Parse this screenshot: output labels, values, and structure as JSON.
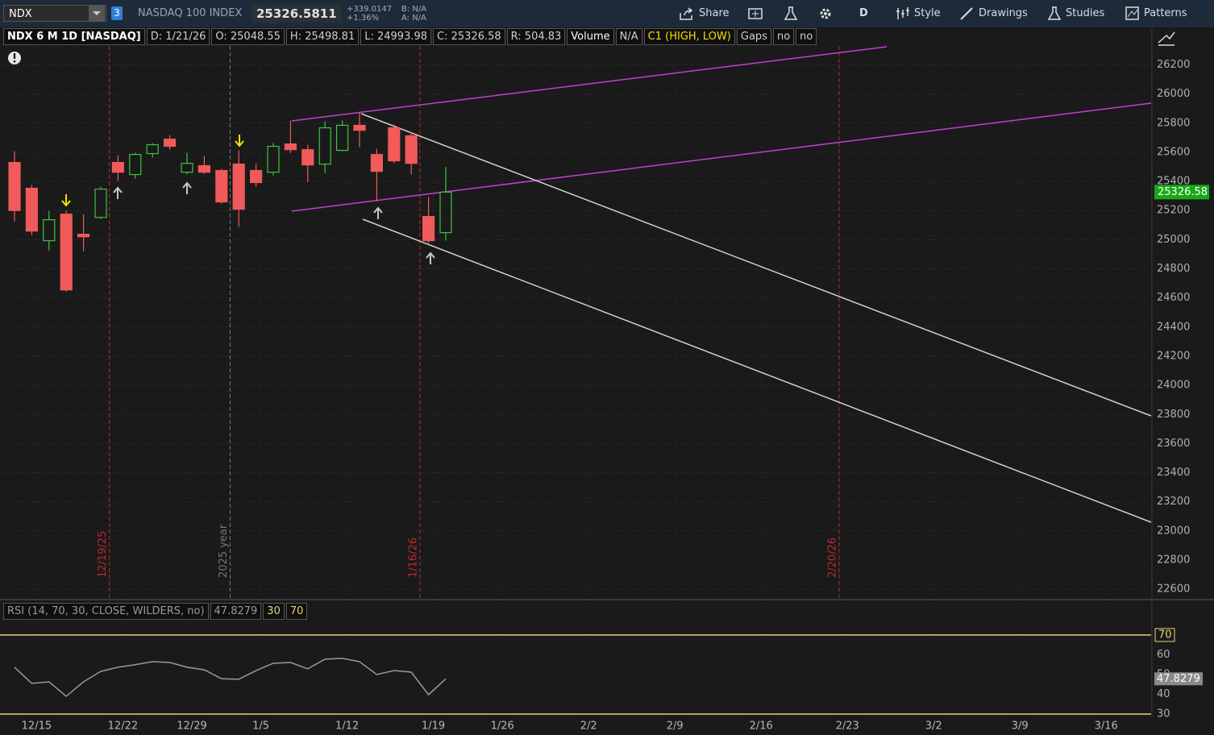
{
  "toolbar": {
    "symbol": "NDX",
    "badge": "3",
    "description": "NASDAQ 100 INDEX",
    "last": "25326.5811",
    "change": "+339.0147",
    "change_pct": "+1.36%",
    "bid": "B: N/A",
    "ask": "A: N/A",
    "buttons": [
      "Share",
      "D",
      "Style",
      "Drawings",
      "Studies",
      "Patterns"
    ]
  },
  "info_bar": [
    "NDX 6 M 1D [NASDAQ]",
    "D: 1/21/26",
    "O: 25048.55",
    "H: 25498.81",
    "L: 24993.98",
    "C: 25326.58",
    "R: 504.83",
    "Volume",
    "N/A",
    "C1 (HIGH, LOW)",
    "Gaps",
    "no",
    "no"
  ],
  "chart_data": [
    {
      "type": "candlestick",
      "categories": [
        null,
        "12/15",
        null,
        null,
        null,
        null,
        "12/22",
        null,
        null,
        null,
        "12/29",
        null,
        null,
        null,
        "1/5",
        null,
        null,
        null,
        null,
        "1/12",
        null,
        null,
        null,
        null,
        "1/19",
        null,
        null,
        null,
        "1/26",
        null,
        null,
        null,
        null,
        "2/2",
        null,
        null,
        null,
        null,
        "2/9",
        null,
        null,
        null,
        null,
        "2/16",
        null,
        null,
        null,
        null,
        "2/23",
        null,
        null,
        null,
        null,
        "3/2",
        null,
        null,
        null,
        null,
        "3/9",
        null,
        null,
        null,
        null,
        "3/16",
        null,
        null,
        null
      ],
      "open": [
        25530,
        25353,
        24993,
        25175,
        25037,
        25153,
        25530,
        25447,
        25591,
        25690,
        25463,
        25508,
        25475,
        25519,
        25475,
        25463,
        25657,
        25618,
        25519,
        25613,
        25785,
        25585,
        25768,
        25713,
        25159,
        25048.55,
        null,
        null,
        null,
        null,
        null,
        null,
        null,
        null,
        null,
        null,
        null,
        null,
        null,
        null,
        null,
        null,
        null,
        null,
        null,
        null,
        null,
        null,
        null,
        null,
        null,
        null,
        null,
        null,
        null,
        null,
        null,
        null,
        null,
        null,
        null,
        null,
        null,
        null,
        null,
        null,
        null
      ],
      "high": [
        25607,
        25375,
        25198,
        25198,
        25175,
        25364,
        25580,
        25596,
        25663,
        25718,
        25596,
        25574,
        25486,
        25613,
        25524,
        25663,
        25818,
        25652,
        25812,
        25818,
        25873,
        25624,
        25790,
        25735,
        25292,
        25498.81,
        null,
        null,
        null,
        null,
        null,
        null,
        null,
        null,
        null,
        null,
        null,
        null,
        null,
        null,
        null,
        null,
        null,
        null,
        null,
        null,
        null,
        null,
        null,
        null,
        null,
        null,
        null,
        null,
        null,
        null,
        null,
        null,
        null,
        null,
        null,
        null,
        null,
        null,
        null,
        null,
        null
      ],
      "low": [
        25126,
        25031,
        24926,
        24644,
        24920,
        25142,
        25402,
        25419,
        25563,
        25618,
        25447,
        25452,
        25248,
        25087,
        25364,
        25441,
        25596,
        25397,
        25458,
        25607,
        25635,
        25264,
        25524,
        25447,
        24976,
        24993.98,
        null,
        null,
        null,
        null,
        null,
        null,
        null,
        null,
        null,
        null,
        null,
        null,
        null,
        null,
        null,
        null,
        null,
        null,
        null,
        null,
        null,
        null,
        null,
        null,
        null,
        null,
        null,
        null,
        null,
        null,
        null,
        null,
        null,
        null,
        null,
        null,
        null,
        null,
        null,
        null,
        null
      ],
      "close": [
        25200,
        25059,
        25137,
        24655,
        25020,
        25347,
        25463,
        25585,
        25652,
        25641,
        25524,
        25463,
        25259,
        25209,
        25392,
        25641,
        25618,
        25513,
        25768,
        25785,
        25751,
        25469,
        25541,
        25524,
        24993,
        25326.58,
        null,
        null,
        null,
        null,
        null,
        null,
        null,
        null,
        null,
        null,
        null,
        null,
        null,
        null,
        null,
        null,
        null,
        null,
        null,
        null,
        null,
        null,
        null,
        null,
        null,
        null,
        null,
        null,
        null,
        null,
        null,
        null,
        null,
        null,
        null,
        null,
        null,
        null,
        null,
        null,
        null
      ],
      "up_color": "#3ec43e",
      "down_color": "#f05a5a",
      "ylim": [
        22540,
        26330
      ],
      "yticks": [
        22600,
        22800,
        23000,
        23200,
        23400,
        23600,
        23800,
        24000,
        24200,
        24400,
        24600,
        24800,
        25000,
        25200,
        25400,
        25600,
        25800,
        26000,
        26200
      ],
      "grid": true,
      "annotations": [
        "12/19/25",
        "2025 year",
        "1/16/26",
        "2/20/26"
      ]
    },
    {
      "type": "line",
      "title": "RSI (14, 70, 30, CLOSE, WILDERS, no)",
      "values": [
        53.7,
        45.5,
        46.3,
        39,
        46.3,
        51.6,
        53.7,
        55,
        56.5,
        56.1,
        53.7,
        52.4,
        47.9,
        47.6,
        52,
        55.7,
        56.1,
        52.9,
        57.8,
        58.2,
        56.5,
        50,
        52,
        51.2,
        39.8,
        47.8279,
        null,
        null,
        null,
        null,
        null,
        null,
        null,
        null,
        null,
        null,
        null,
        null,
        null,
        null,
        null,
        null,
        null,
        null,
        null,
        null,
        null,
        null,
        null,
        null,
        null,
        null,
        null,
        null,
        null,
        null,
        null,
        null,
        null,
        null,
        null,
        null,
        null,
        null,
        null,
        null,
        null
      ],
      "color": "#9a9a9a",
      "levels": [
        30,
        70
      ],
      "level_color": "#e8d27a",
      "ylim": [
        30,
        76.5
      ],
      "yticks": [
        30,
        40,
        50,
        60,
        70
      ]
    }
  ]
}
